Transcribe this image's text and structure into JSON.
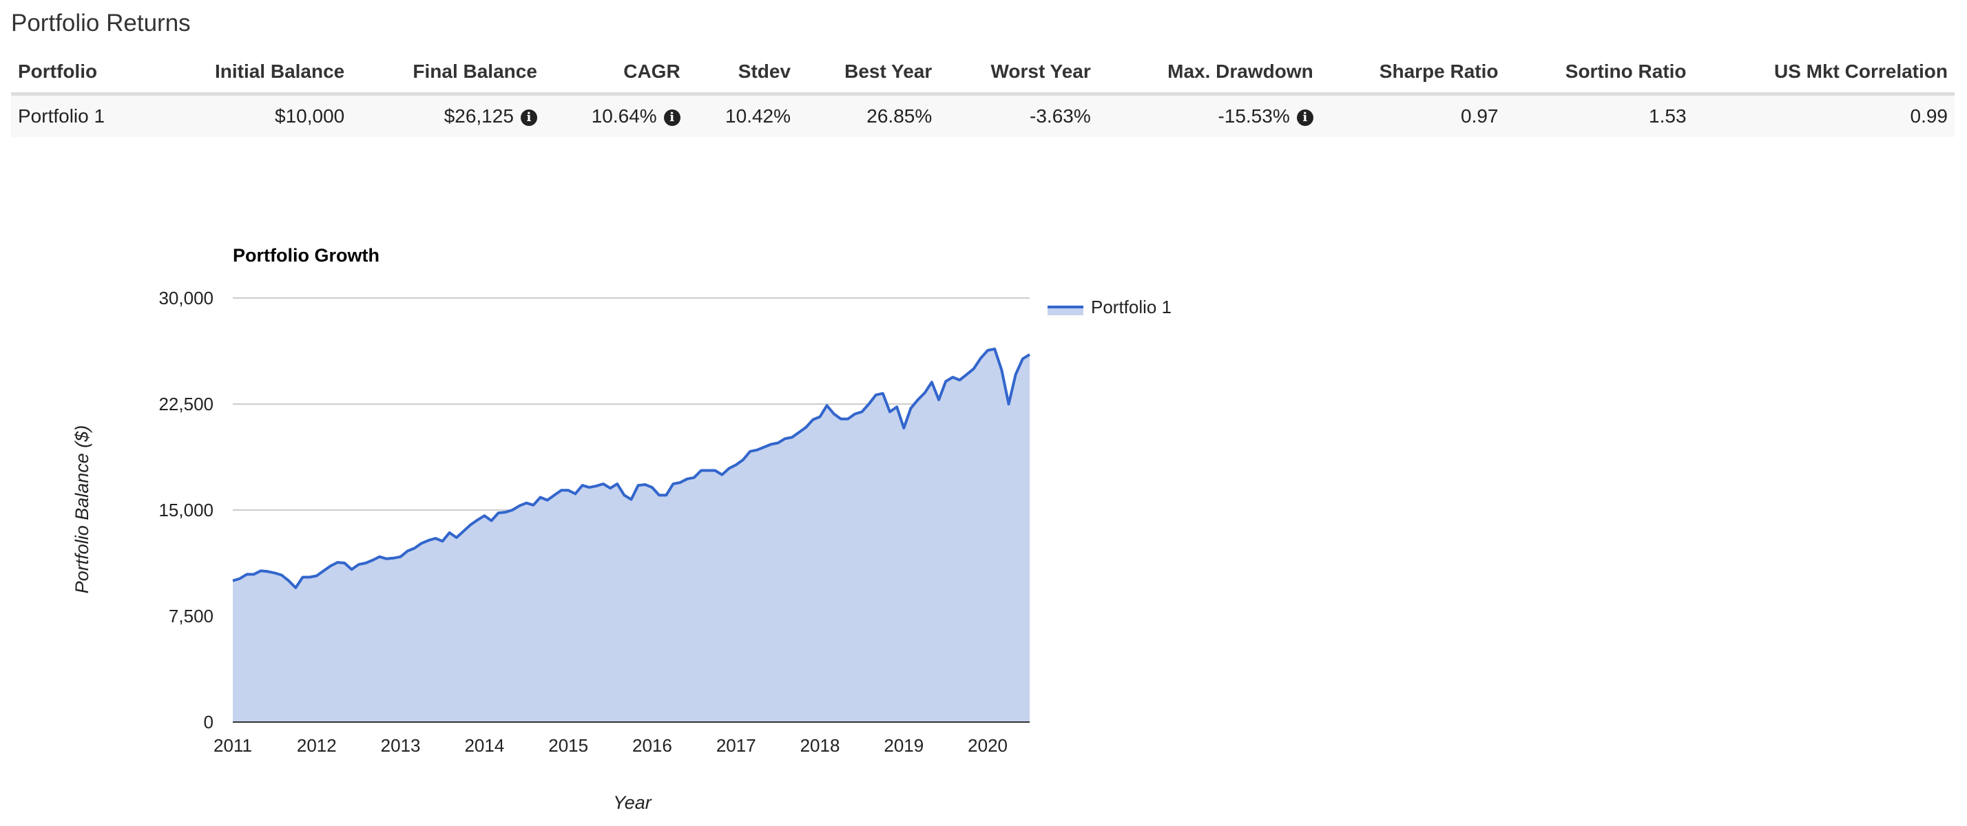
{
  "section_title": "Portfolio Returns",
  "table": {
    "headers": [
      "Portfolio",
      "Initial Balance",
      "Final Balance",
      "CAGR",
      "Stdev",
      "Best Year",
      "Worst Year",
      "Max. Drawdown",
      "Sharpe Ratio",
      "Sortino Ratio",
      "US Mkt Correlation"
    ],
    "rows": [
      {
        "portfolio": "Portfolio 1",
        "initial_balance": "$10,000",
        "final_balance": "$26,125",
        "cagr": "10.64%",
        "stdev": "10.42%",
        "best_year": "26.85%",
        "worst_year": "-3.63%",
        "max_drawdown": "-15.53%",
        "sharpe_ratio": "0.97",
        "sortino_ratio": "1.53",
        "us_mkt_correlation": "0.99"
      }
    ],
    "info_icon": "info-circle-icon"
  },
  "chart_data": {
    "type": "area",
    "title": "Portfolio Growth",
    "xlabel": "Year",
    "ylabel": "Portfolio Balance ($)",
    "xlim": [
      2011.0,
      2020.5
    ],
    "ylim": [
      0,
      30000
    ],
    "x_ticks": [
      2011,
      2012,
      2013,
      2014,
      2015,
      2016,
      2017,
      2018,
      2019,
      2020
    ],
    "y_ticks": [
      0,
      7500,
      15000,
      22500,
      30000
    ],
    "y_tick_labels": [
      "0",
      "7,500",
      "15,000",
      "22,500",
      "30,000"
    ],
    "grid": true,
    "legend": "top-right",
    "line_color": "#3366cc",
    "fill_color": "#c5d3ef",
    "series": [
      {
        "name": "Portfolio 1",
        "x": [
          2011.0,
          2011.083,
          2011.167,
          2011.25,
          2011.333,
          2011.417,
          2011.5,
          2011.583,
          2011.667,
          2011.75,
          2011.833,
          2011.917,
          2012.0,
          2012.083,
          2012.167,
          2012.25,
          2012.333,
          2012.417,
          2012.5,
          2012.583,
          2012.667,
          2012.75,
          2012.833,
          2012.917,
          2013.0,
          2013.083,
          2013.167,
          2013.25,
          2013.333,
          2013.417,
          2013.5,
          2013.583,
          2013.667,
          2013.75,
          2013.833,
          2013.917,
          2014.0,
          2014.083,
          2014.167,
          2014.25,
          2014.333,
          2014.417,
          2014.5,
          2014.583,
          2014.667,
          2014.75,
          2014.833,
          2014.917,
          2015.0,
          2015.083,
          2015.167,
          2015.25,
          2015.333,
          2015.417,
          2015.5,
          2015.583,
          2015.667,
          2015.75,
          2015.833,
          2015.917,
          2016.0,
          2016.083,
          2016.167,
          2016.25,
          2016.333,
          2016.417,
          2016.5,
          2016.583,
          2016.667,
          2016.75,
          2016.833,
          2016.917,
          2017.0,
          2017.083,
          2017.167,
          2017.25,
          2017.333,
          2017.417,
          2017.5,
          2017.583,
          2017.667,
          2017.75,
          2017.833,
          2017.917,
          2018.0,
          2018.083,
          2018.167,
          2018.25,
          2018.333,
          2018.417,
          2018.5,
          2018.583,
          2018.667,
          2018.75,
          2018.833,
          2018.917,
          2019.0,
          2019.083,
          2019.167,
          2019.25,
          2019.333,
          2019.417,
          2019.5,
          2019.583,
          2019.667,
          2019.75,
          2019.833,
          2019.917,
          2020.0,
          2020.083,
          2020.167,
          2020.25,
          2020.333,
          2020.417,
          2020.5
        ],
        "values": [
          10000,
          10150,
          10450,
          10450,
          10700,
          10650,
          10550,
          10400,
          10000,
          9500,
          10250,
          10250,
          10350,
          10700,
          11050,
          11300,
          11250,
          10800,
          11150,
          11250,
          11450,
          11700,
          11550,
          11600,
          11700,
          12100,
          12300,
          12650,
          12850,
          13000,
          12800,
          13400,
          13050,
          13500,
          13950,
          14300,
          14600,
          14250,
          14800,
          14850,
          15000,
          15300,
          15500,
          15350,
          15900,
          15700,
          16050,
          16400,
          16400,
          16150,
          16750,
          16600,
          16700,
          16850,
          16550,
          16850,
          16050,
          15750,
          16750,
          16800,
          16600,
          16050,
          16050,
          16850,
          16950,
          17200,
          17300,
          17800,
          17800,
          17800,
          17500,
          17950,
          18200,
          18550,
          19150,
          19250,
          19450,
          19650,
          19750,
          20050,
          20150,
          20500,
          20850,
          21400,
          21600,
          22400,
          21800,
          21450,
          21450,
          21800,
          21950,
          22500,
          23150,
          23250,
          21950,
          22300,
          20800,
          22200,
          22800,
          23300,
          24050,
          22800,
          24100,
          24400,
          24200,
          24600,
          25000,
          25750,
          26300,
          26400,
          24900,
          22500,
          24600,
          25700,
          26000
        ]
      }
    ]
  }
}
